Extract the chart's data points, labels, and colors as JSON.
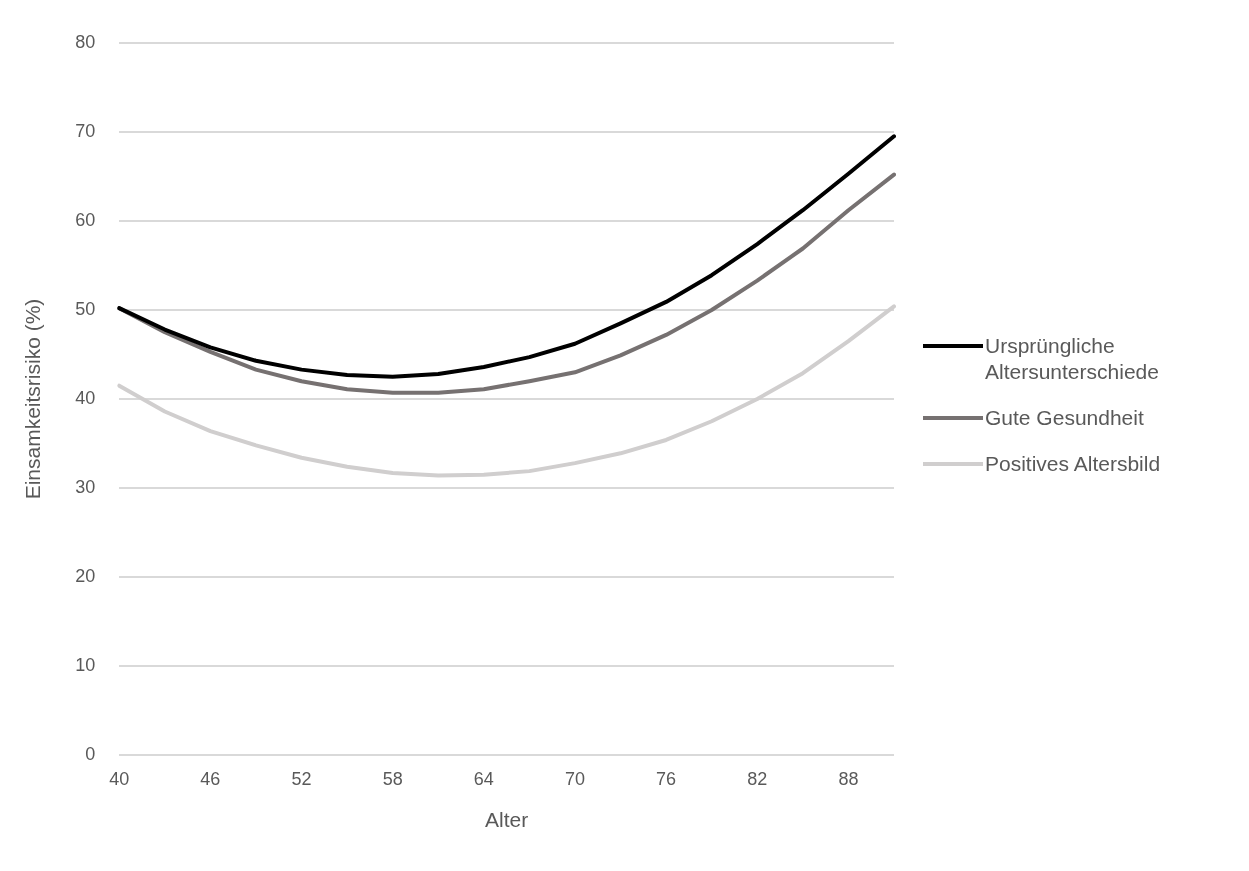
{
  "chart_data": {
    "type": "line",
    "xlabel": "Alter",
    "ylabel": "Einsamkeitsrisiko (%)",
    "categories": [
      "40",
      null,
      "46",
      null,
      "52",
      null,
      "58",
      null,
      "64",
      null,
      "70",
      null,
      "76",
      null,
      "82",
      null,
      "88",
      null
    ],
    "series": [
      {
        "name": "Ursprüngliche Altersunterschiede",
        "color": "#000000",
        "values": [
          50.2,
          47.8,
          45.8,
          44.3,
          43.3,
          42.7,
          42.5,
          42.8,
          43.6,
          44.7,
          46.2,
          48.5,
          50.9,
          53.9,
          57.4,
          61.2,
          65.3,
          69.5
        ]
      },
      {
        "name": "Gute Gesundheit",
        "color": "#767171",
        "values": [
          50.2,
          47.5,
          45.3,
          43.3,
          42.0,
          41.1,
          40.7,
          40.7,
          41.1,
          42.0,
          43.0,
          44.9,
          47.2,
          50.0,
          53.3,
          56.9,
          61.2,
          65.2
        ]
      },
      {
        "name": "Positives Altersbild",
        "color": "#d0cece",
        "values": [
          41.5,
          38.6,
          36.4,
          34.8,
          33.4,
          32.4,
          31.7,
          31.4,
          31.5,
          31.9,
          32.8,
          33.9,
          35.4,
          37.5,
          40.0,
          42.9,
          46.5,
          50.4
        ]
      }
    ],
    "ylim": [
      0,
      80
    ],
    "yticks": [
      0,
      10,
      20,
      30,
      40,
      50,
      60,
      70,
      80
    ],
    "grid": "y",
    "legend": "right",
    "marker": "none",
    "line_style": "solid"
  }
}
